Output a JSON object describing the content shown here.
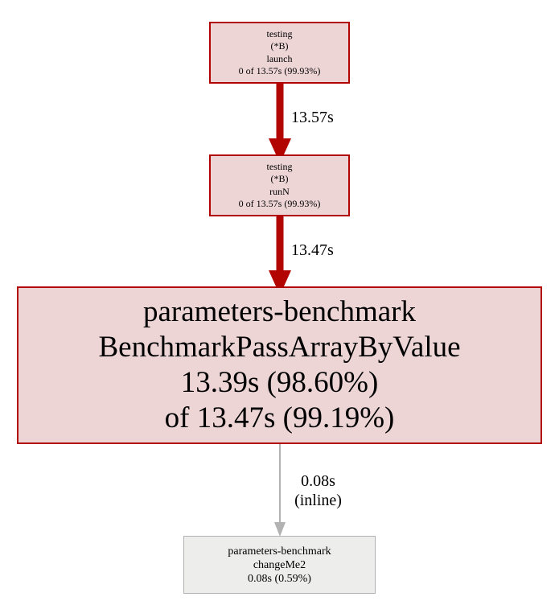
{
  "nodes": {
    "launch": {
      "lines": [
        "testing",
        "(*B)",
        "launch",
        "0 of 13.57s (99.93%)"
      ]
    },
    "runN": {
      "lines": [
        "testing",
        "(*B)",
        "runN",
        "0 of 13.57s (99.93%)"
      ]
    },
    "bench": {
      "lines": [
        "parameters-benchmark",
        "BenchmarkPassArrayByValue",
        "13.39s (98.60%)",
        "of 13.47s (99.19%)"
      ]
    },
    "changeMe2": {
      "lines": [
        "parameters-benchmark",
        "changeMe2",
        "0.08s (0.59%)"
      ]
    }
  },
  "edges": {
    "launch_to_runN": {
      "label": "13.57s"
    },
    "runN_to_bench": {
      "label": "13.47s"
    },
    "bench_to_changeMe2": {
      "label_lines": [
        "0.08s",
        "(inline)"
      ]
    }
  },
  "colors": {
    "hot_fill": "#edd5d6",
    "hot_border": "#b20400",
    "cold_fill": "#ededec",
    "cold_border": "#b2b2b2",
    "inline_edge": "#b2b2b2"
  }
}
